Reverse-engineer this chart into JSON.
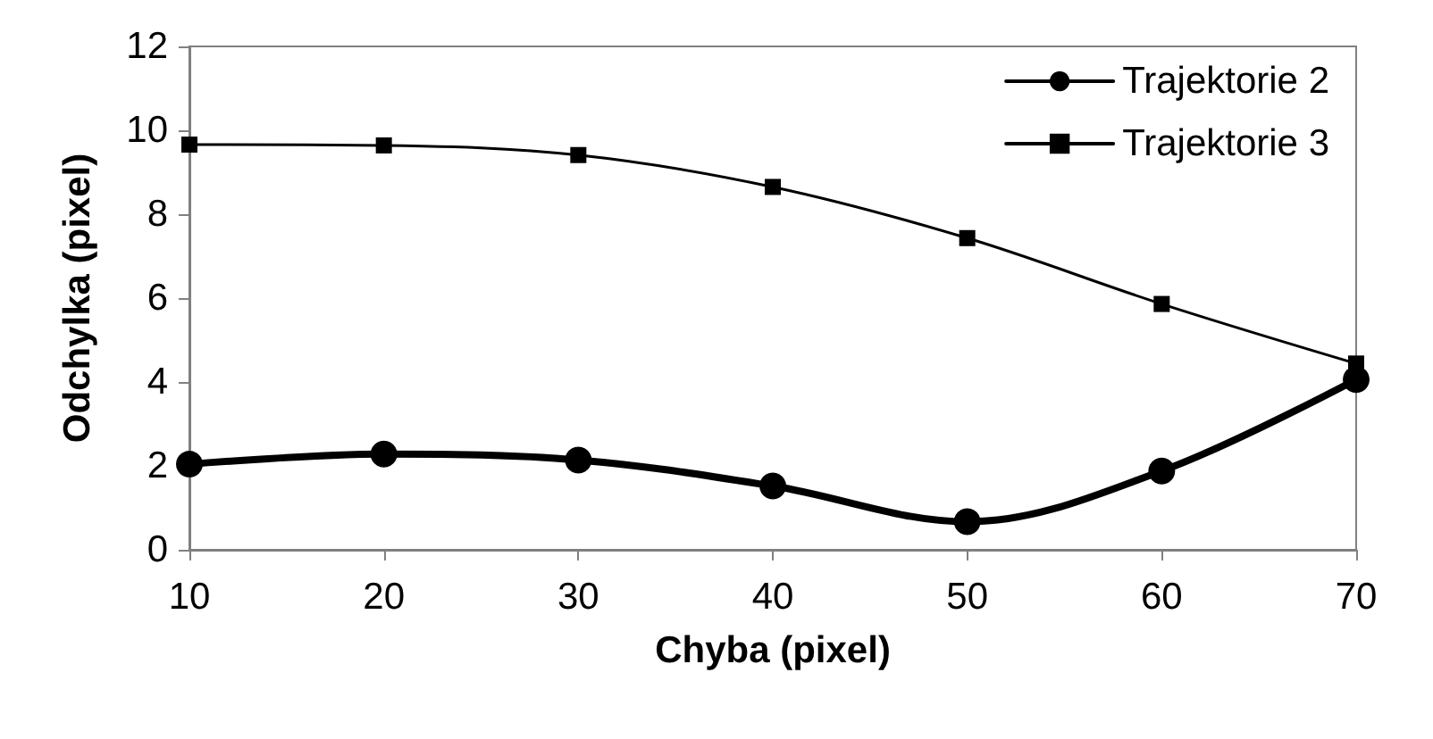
{
  "chart_data": {
    "type": "line",
    "xlabel": "Chyba (pixel)",
    "ylabel": "Odchylka (pixel)",
    "x": [
      10,
      20,
      30,
      40,
      50,
      60,
      70
    ],
    "series": [
      {
        "name": "Trajektorie 2",
        "color": "#000000",
        "marker": "circle",
        "values": [
          2.04,
          2.28,
          2.14,
          1.52,
          0.67,
          1.88,
          4.06
        ]
      },
      {
        "name": "Trajektorie 3",
        "color": "#000000",
        "marker": "square",
        "values": [
          9.66,
          9.64,
          9.41,
          8.65,
          7.43,
          5.86,
          4.44
        ]
      }
    ],
    "xlim": [
      10,
      70
    ],
    "xticks": [
      10,
      20,
      30,
      40,
      50,
      60,
      70
    ],
    "ylim": [
      0,
      12
    ],
    "yticks": [
      0,
      2,
      4,
      6,
      8,
      10,
      12
    ],
    "grid": false,
    "legend": "top right",
    "line_style": "solid"
  }
}
